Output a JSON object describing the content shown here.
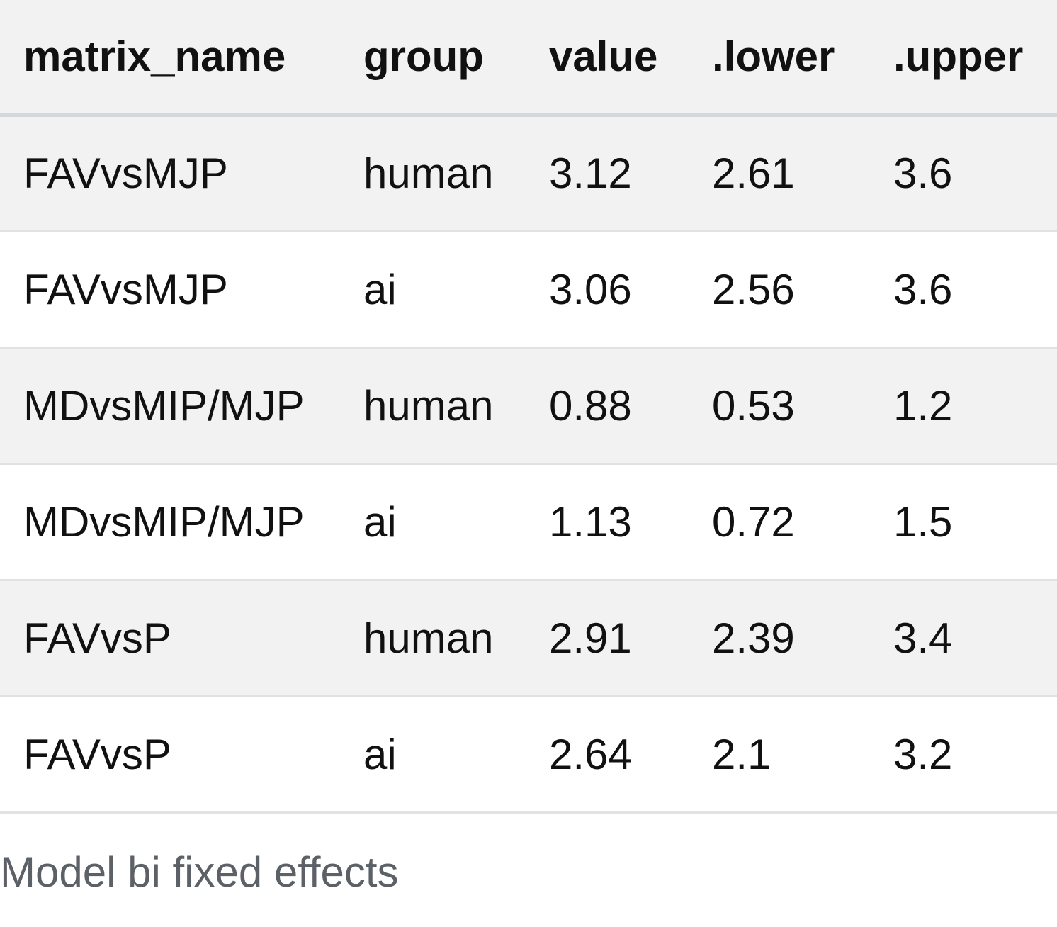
{
  "table": {
    "columns": [
      "matrix_name",
      "group",
      "value",
      ".lower",
      ".upper"
    ],
    "rows": [
      [
        "FAVvsMJP",
        "human",
        "3.12",
        "2.61",
        "3.6"
      ],
      [
        "FAVvsMJP",
        "ai",
        "3.06",
        "2.56",
        "3.6"
      ],
      [
        "MDvsMIP/MJP",
        "human",
        "0.88",
        "0.53",
        "1.2"
      ],
      [
        "MDvsMIP/MJP",
        "ai",
        "1.13",
        "0.72",
        "1.5"
      ],
      [
        "FAVvsP",
        "human",
        "2.91",
        "2.39",
        "3.4"
      ],
      [
        "FAVvsP",
        "ai",
        "2.64",
        "2.1",
        "3.2"
      ]
    ],
    "caption": "Model bi fixed effects"
  },
  "colors": {
    "striped_row": "#f2f2f2",
    "caption_text": "#5c6167"
  }
}
